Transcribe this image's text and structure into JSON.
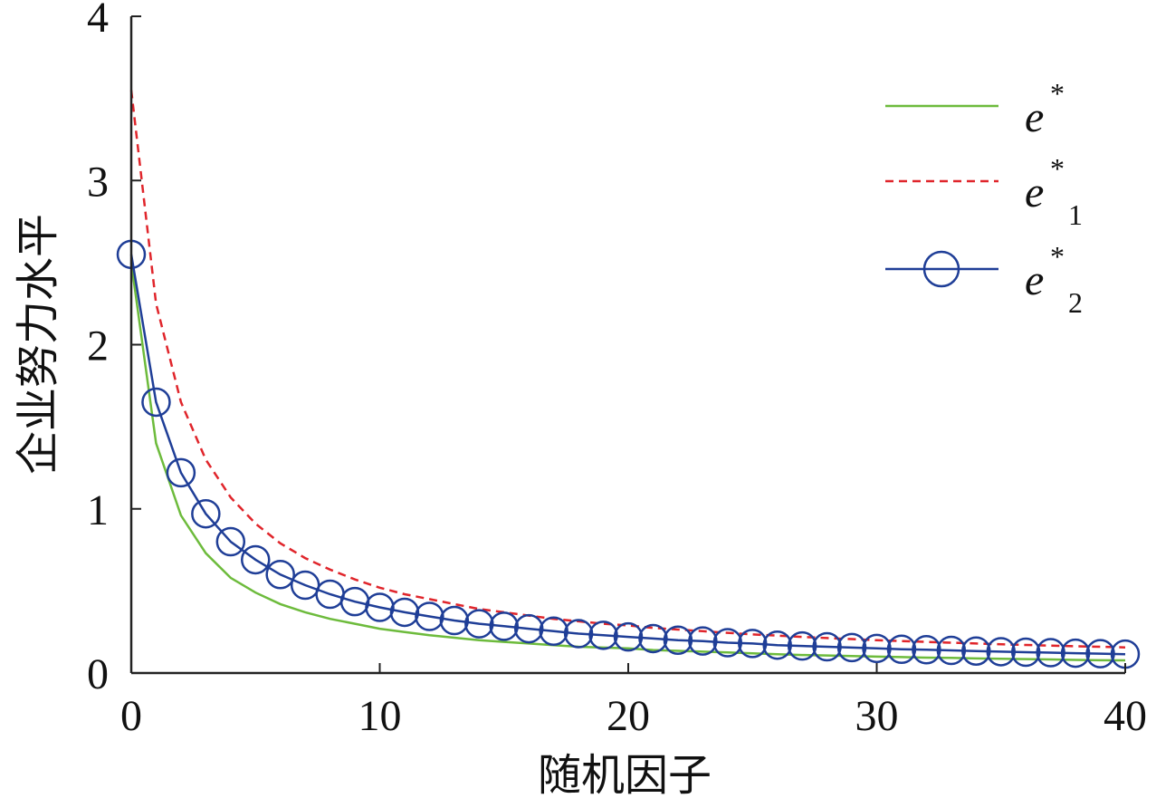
{
  "chart_data": {
    "type": "line",
    "xlabel": "随机因子",
    "ylabel": "企业努力水平",
    "xlim": [
      0,
      40
    ],
    "ylim": [
      0,
      4
    ],
    "xticks": [
      "0",
      "10",
      "20",
      "30",
      "40"
    ],
    "yticks": [
      "0",
      "1",
      "2",
      "3",
      "4"
    ],
    "grid": false,
    "legend_position": "top-right",
    "series": [
      {
        "name": "e*",
        "legend": {
          "base": "e",
          "sup": "*",
          "sub": ""
        },
        "color": "#6DBB3C",
        "style": "solid",
        "marker": "none",
        "x": [
          0,
          1,
          2,
          3,
          4,
          5,
          6,
          7,
          8,
          9,
          10,
          11,
          12,
          13,
          14,
          15,
          16,
          17,
          18,
          19,
          20,
          21,
          22,
          23,
          24,
          25,
          26,
          27,
          28,
          29,
          30,
          31,
          32,
          33,
          34,
          35,
          36,
          37,
          38,
          39,
          40
        ],
        "y": [
          2.5,
          1.4,
          0.96,
          0.73,
          0.58,
          0.49,
          0.42,
          0.37,
          0.33,
          0.3,
          0.27,
          0.25,
          0.23,
          0.215,
          0.2,
          0.19,
          0.18,
          0.17,
          0.16,
          0.155,
          0.15,
          0.14,
          0.135,
          0.13,
          0.125,
          0.12,
          0.115,
          0.11,
          0.107,
          0.103,
          0.1,
          0.097,
          0.094,
          0.092,
          0.089,
          0.087,
          0.085,
          0.083,
          0.08,
          0.078,
          0.077
        ]
      },
      {
        "name": "e*1",
        "legend": {
          "base": "e",
          "sup": "*",
          "sub": "1"
        },
        "color": "#E0252B",
        "style": "dashed",
        "marker": "none",
        "x": [
          0,
          1,
          2,
          3,
          4,
          5,
          6,
          7,
          8,
          9,
          10,
          11,
          12,
          13,
          14,
          15,
          16,
          17,
          18,
          19,
          20,
          21,
          22,
          23,
          24,
          25,
          26,
          27,
          28,
          29,
          30,
          31,
          32,
          33,
          34,
          35,
          36,
          37,
          38,
          39,
          40
        ],
        "y": [
          3.55,
          2.25,
          1.65,
          1.3,
          1.07,
          0.91,
          0.79,
          0.7,
          0.63,
          0.57,
          0.52,
          0.48,
          0.45,
          0.42,
          0.39,
          0.37,
          0.35,
          0.33,
          0.315,
          0.3,
          0.29,
          0.275,
          0.265,
          0.255,
          0.245,
          0.235,
          0.228,
          0.22,
          0.213,
          0.207,
          0.2,
          0.195,
          0.19,
          0.185,
          0.18,
          0.175,
          0.171,
          0.167,
          0.163,
          0.16,
          0.156
        ]
      },
      {
        "name": "e*2",
        "legend": {
          "base": "e",
          "sup": "*",
          "sub": "2"
        },
        "color": "#1F3E97",
        "style": "solid",
        "marker": "circle",
        "x": [
          0,
          1,
          2,
          3,
          4,
          5,
          6,
          7,
          8,
          9,
          10,
          11,
          12,
          13,
          14,
          15,
          16,
          17,
          18,
          19,
          20,
          21,
          22,
          23,
          24,
          25,
          26,
          27,
          28,
          29,
          30,
          31,
          32,
          33,
          34,
          35,
          36,
          37,
          38,
          39,
          40
        ],
        "y": [
          2.55,
          1.65,
          1.22,
          0.97,
          0.8,
          0.69,
          0.6,
          0.535,
          0.48,
          0.435,
          0.4,
          0.37,
          0.345,
          0.32,
          0.3,
          0.285,
          0.27,
          0.255,
          0.24,
          0.23,
          0.22,
          0.21,
          0.2,
          0.195,
          0.185,
          0.18,
          0.17,
          0.165,
          0.16,
          0.155,
          0.15,
          0.145,
          0.142,
          0.138,
          0.134,
          0.13,
          0.127,
          0.124,
          0.121,
          0.118,
          0.115
        ]
      }
    ]
  }
}
